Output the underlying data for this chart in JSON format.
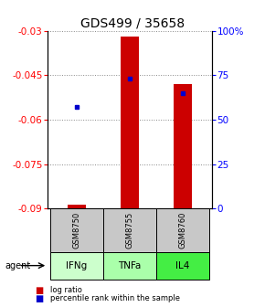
{
  "title": "GDS499 / 35658",
  "categories": [
    "GSM8750",
    "GSM8755",
    "GSM8760"
  ],
  "agents": [
    "IFNg",
    "TNFa",
    "IL4"
  ],
  "bar_tops": [
    -0.0885,
    -0.032,
    -0.048
  ],
  "bar_bottom": -0.09,
  "percentile_ranks": [
    57,
    73,
    65
  ],
  "ylim_left": [
    -0.09,
    -0.03
  ],
  "ylim_right": [
    0,
    100
  ],
  "yticks_left": [
    -0.09,
    -0.075,
    -0.06,
    -0.045,
    -0.03
  ],
  "yticks_right": [
    0,
    25,
    50,
    75,
    100
  ],
  "ytick_labels_left": [
    "-0.09",
    "-0.075",
    "-0.06",
    "-0.045",
    "-0.03"
  ],
  "ytick_labels_right": [
    "0",
    "25",
    "50",
    "75",
    "100%"
  ],
  "bar_color": "#cc0000",
  "percentile_color": "#0000cc",
  "gsm_bg_color": "#c8c8c8",
  "agent_colors": [
    "#ccffcc",
    "#aaffaa",
    "#44ee44"
  ],
  "grid_color": "#888888",
  "title_fontsize": 10,
  "tick_fontsize": 7.5,
  "bar_width": 0.35
}
